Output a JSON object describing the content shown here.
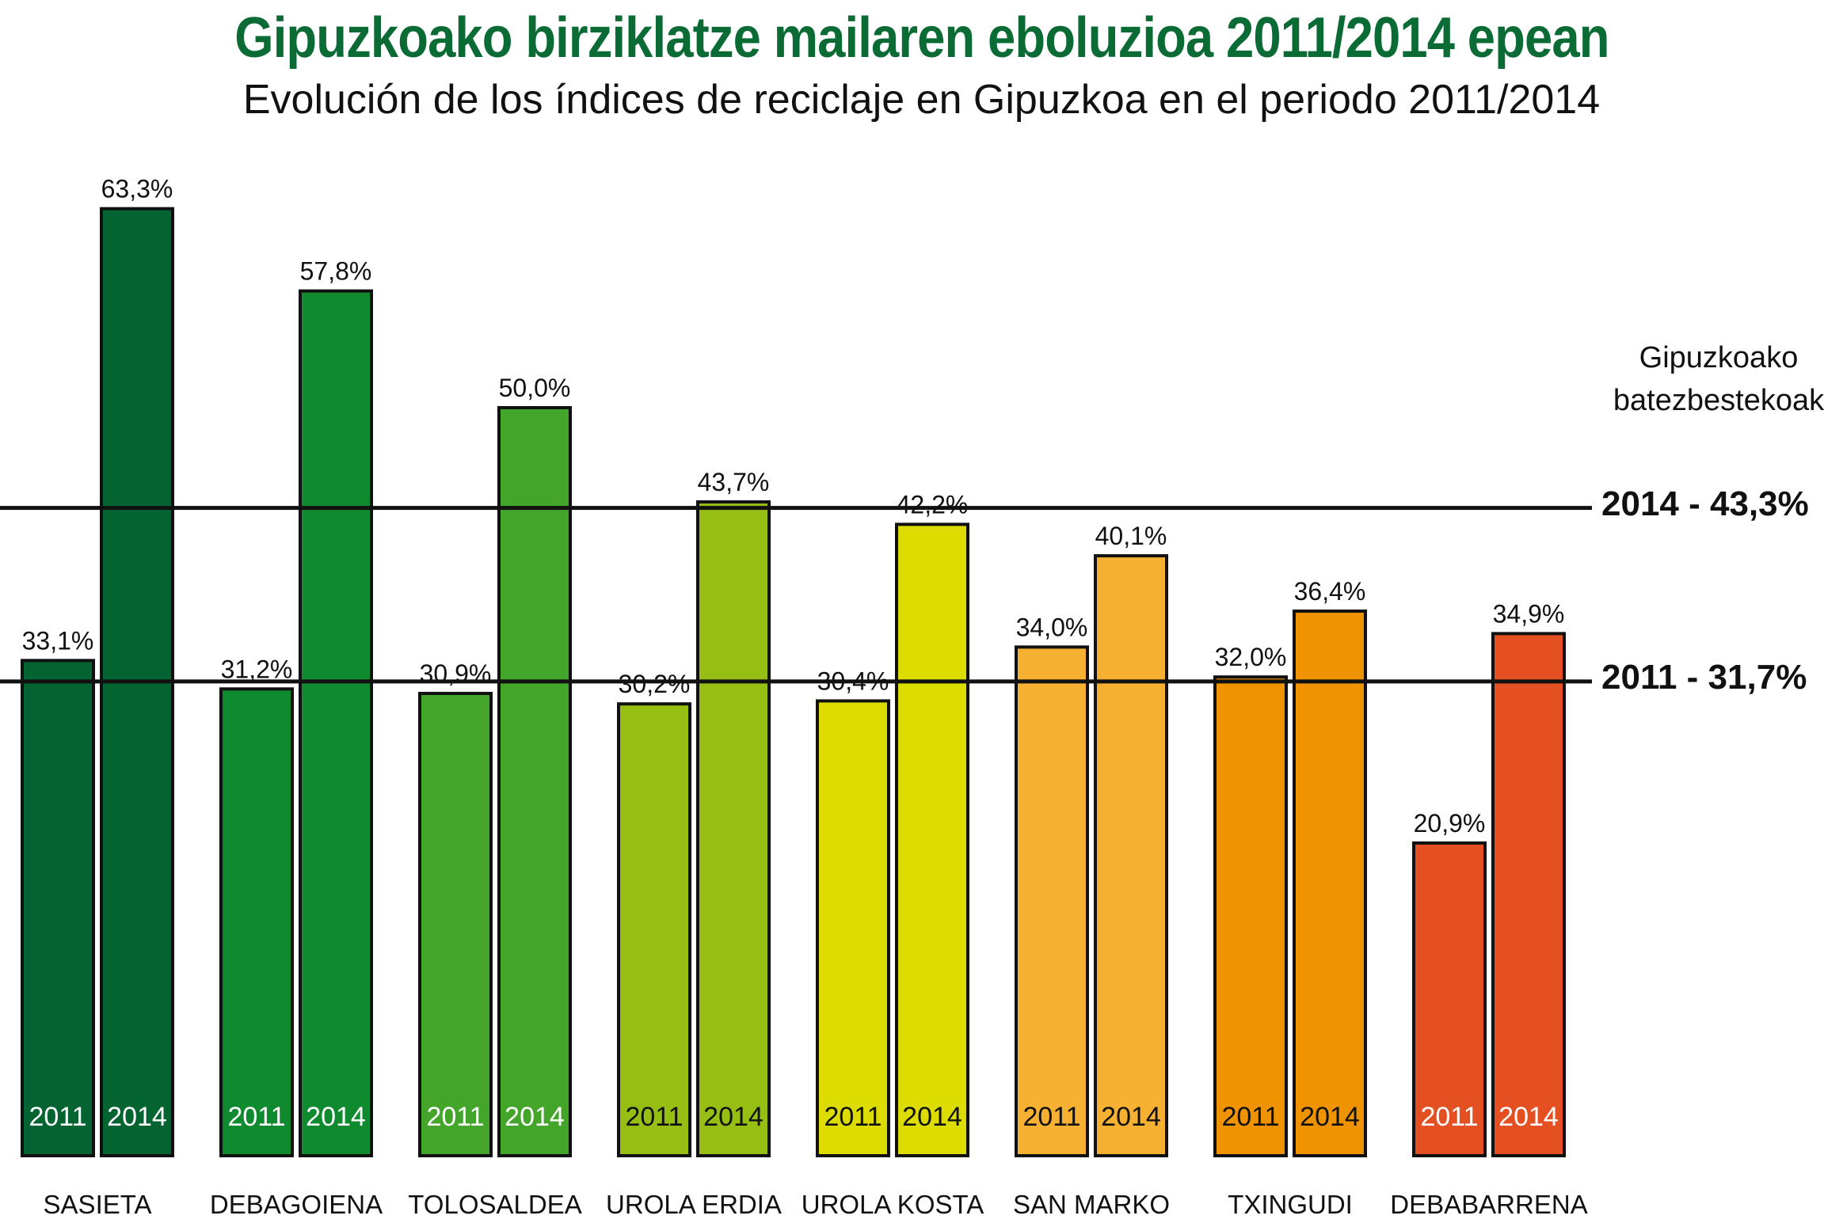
{
  "title": "Gipuzkoako birziklatze mailaren eboluzioa 2011/2014 epean",
  "subtitle": "Evolución de los índices de reciclaje en Gipuzkoa en el periodo 2011/2014",
  "chart_data": {
    "type": "bar",
    "title": "Gipuzkoako birziklatze mailaren eboluzioa 2011/2014 epean",
    "subtitle": "Evolución de los índices de reciclaje en Gipuzkoa en el periodo 2011/2014",
    "categories": [
      "SASIETA",
      "DEBAGOIENA",
      "TOLOSALDEA",
      "UROLA ERDIA",
      "UROLA KOSTA",
      "SAN MARKO",
      "TXINGUDI",
      "DEBABARRENA"
    ],
    "series": [
      {
        "name": "2011",
        "values": [
          33.1,
          31.2,
          30.9,
          30.2,
          30.4,
          34.0,
          32.0,
          20.9
        ],
        "labels": [
          "33,1%",
          "31,2%",
          "30,9%",
          "30,2%",
          "30,4%",
          "34,0%",
          "32,0%",
          "20,9%"
        ]
      },
      {
        "name": "2014",
        "values": [
          63.3,
          57.8,
          50.0,
          43.7,
          42.2,
          40.1,
          36.4,
          34.9
        ],
        "labels": [
          "63,3%",
          "57,8%",
          "50,0%",
          "43,7%",
          "42,2%",
          "40,1%",
          "36,4%",
          "34,9%"
        ]
      }
    ],
    "colors": [
      "#036432",
      "#0f8a2f",
      "#43a52a",
      "#97bf13",
      "#dddc00",
      "#f6b133",
      "#f09300",
      "#e55022"
    ],
    "year_label_colors": [
      "#ffffff",
      "#ffffff",
      "#ffffff",
      "#111111",
      "#111111",
      "#111111",
      "#111111",
      "#ffffff"
    ],
    "reference_lines": [
      {
        "year": "2014",
        "value": 43.3,
        "label": "2014 - 43,3%"
      },
      {
        "year": "2011",
        "value": 31.7,
        "label": "2011 - 31,7%"
      }
    ],
    "reference_heading": "Gipuzkoako batezbestekoak",
    "ylim": [
      0,
      65
    ],
    "grid": false,
    "xlabel": "",
    "ylabel": ""
  }
}
